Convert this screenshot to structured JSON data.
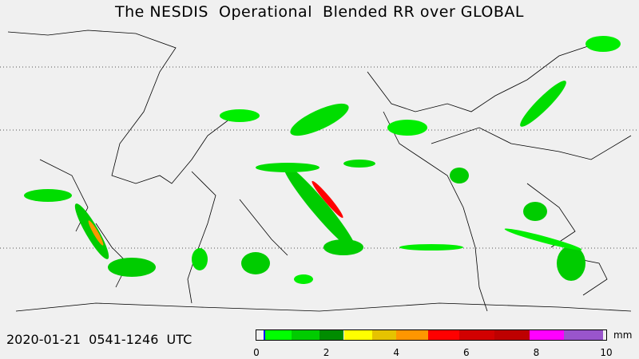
{
  "title": "The NESDIS  Operational  Blended RR over GLOBAL",
  "timestamp": "2020-01-21  0541-1246  UTC",
  "colorbar": {
    "unit": "mm",
    "ticks": [
      "0",
      "2",
      "4",
      "6",
      "8",
      "10"
    ],
    "tick_values": [
      0,
      2,
      4,
      6,
      8,
      10
    ],
    "range": [
      0,
      10
    ],
    "colors": [
      "#0000ff",
      "#00ff00",
      "#00cc00",
      "#008c00",
      "#ffff00",
      "#e6c300",
      "#ff9600",
      "#ff0000",
      "#d20000",
      "#be0000",
      "#ff00ff",
      "#9955cc"
    ],
    "boundaries": [
      0.2,
      0.25,
      1.0,
      1.8,
      2.5,
      3.3,
      4.0,
      4.9,
      5.8,
      6.8,
      7.8,
      8.8,
      9.9
    ]
  },
  "map": {
    "type": "global rain rate",
    "land_outline_color": "#000000",
    "background_color": "#f0f0f0",
    "dotted_latitude_lines": true
  }
}
